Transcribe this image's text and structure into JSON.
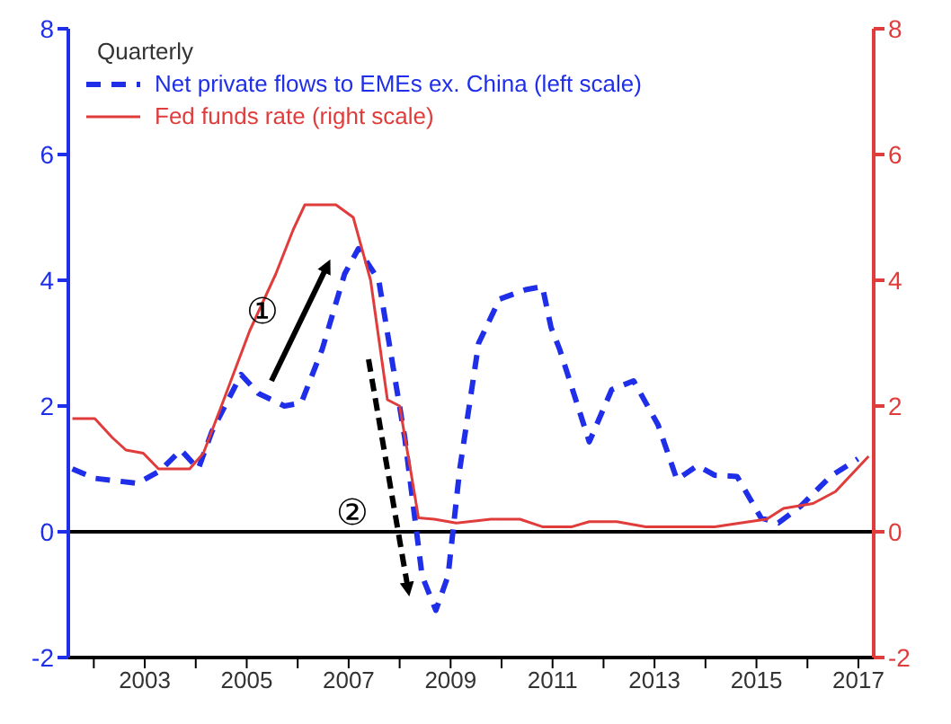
{
  "chart_data": {
    "type": "line",
    "legend_title": "Quarterly",
    "legend": "top left",
    "xlim": [
      2001.5,
      2017.3
    ],
    "xticks": [
      {
        "value": 2002,
        "label": null
      },
      2003,
      {
        "value": 2004,
        "label": null
      },
      2005,
      {
        "value": 2006,
        "label": null
      },
      2007,
      {
        "value": 2008,
        "label": null
      },
      2009,
      {
        "value": 2010,
        "label": null
      },
      2011,
      {
        "value": 2012,
        "label": null
      },
      2013,
      {
        "value": 2014,
        "label": null
      },
      2015,
      {
        "value": 2016,
        "label": null
      },
      2017
    ],
    "ylim": [
      -2,
      8
    ],
    "yticks": [
      -2,
      0,
      2,
      4,
      6,
      8
    ],
    "y2lim": [
      -2,
      8
    ],
    "y2ticks": [
      -2,
      0,
      2,
      4,
      6,
      8
    ],
    "ref_lines": [
      {
        "axis": "y",
        "value": 0,
        "color": "#000000"
      }
    ],
    "annotations": [
      "①",
      "②"
    ],
    "series": [
      {
        "name": "Net private flows to EMEs ex. China (left scale)",
        "color": "#1f2ee8",
        "line_style": "dashed",
        "x": [
          2001.58,
          2002.02,
          2002.86,
          2003.3,
          2003.71,
          2004.05,
          2004.32,
          2004.89,
          2005.23,
          2005.74,
          2006.07,
          2006.48,
          2006.92,
          2007.19,
          2007.59,
          2008.1,
          2008.44,
          2008.71,
          2008.95,
          2009.18,
          2009.55,
          2009.96,
          2010.47,
          2010.8,
          2010.97,
          2011.14,
          2011.72,
          2012.16,
          2012.59,
          2013.07,
          2013.44,
          2013.84,
          2014.18,
          2014.62,
          2015.09,
          2015.43,
          2015.87,
          2016.45,
          2016.99
        ],
        "values": [
          1.0,
          0.85,
          0.77,
          0.97,
          1.3,
          1.0,
          1.6,
          2.5,
          2.2,
          2.0,
          2.05,
          2.9,
          4.1,
          4.5,
          4.0,
          1.5,
          -0.7,
          -1.25,
          -0.7,
          1.0,
          3.0,
          3.7,
          3.85,
          3.9,
          3.25,
          2.9,
          1.43,
          2.26,
          2.4,
          1.7,
          0.83,
          1.05,
          0.9,
          0.88,
          0.22,
          0.14,
          0.41,
          0.88,
          1.16
        ]
      },
      {
        "name": "Fed funds rate (right scale)",
        "color": "#e03c3c",
        "line_style": "solid",
        "axis": "y2",
        "x": [
          2001.58,
          2002.02,
          2002.36,
          2002.63,
          2002.97,
          2003.27,
          2003.88,
          2004.15,
          2004.55,
          2005.06,
          2005.57,
          2005.91,
          2006.14,
          2006.75,
          2007.09,
          2007.43,
          2007.76,
          2008.0,
          2008.2,
          2008.37,
          2008.68,
          2009.11,
          2009.79,
          2010.36,
          2010.8,
          2011.38,
          2011.72,
          2012.26,
          2012.83,
          2014.18,
          2014.86,
          2015.2,
          2015.53,
          2016.11,
          2016.55,
          2017.2
        ],
        "values": [
          1.8,
          1.8,
          1.5,
          1.3,
          1.25,
          1.0,
          1.0,
          1.25,
          2.1,
          3.2,
          4.1,
          4.8,
          5.2,
          5.2,
          5.0,
          4.0,
          2.1,
          2.0,
          1.05,
          0.22,
          0.2,
          0.14,
          0.2,
          0.2,
          0.08,
          0.08,
          0.16,
          0.16,
          0.08,
          0.08,
          0.16,
          0.2,
          0.37,
          0.45,
          0.64,
          1.2
        ]
      }
    ]
  }
}
